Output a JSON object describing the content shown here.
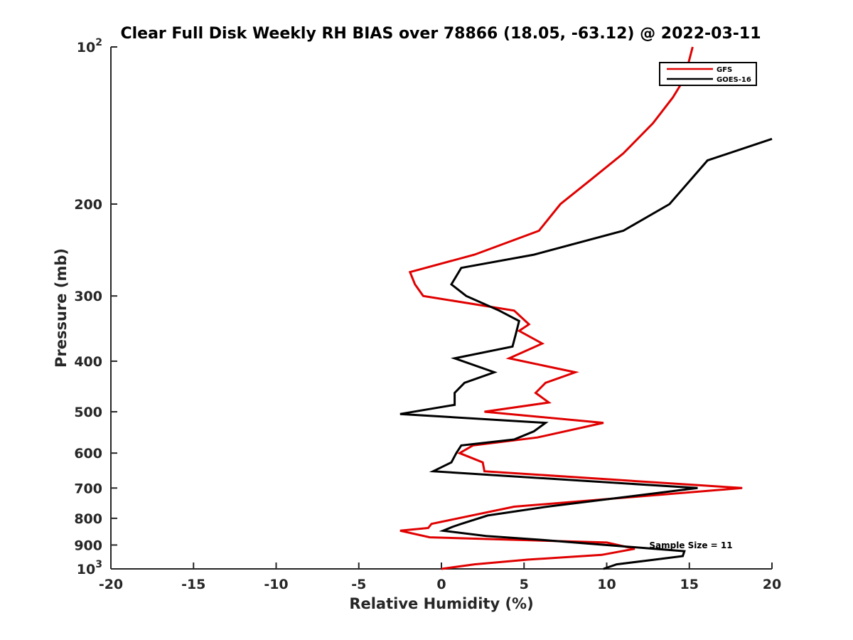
{
  "chart_data": {
    "type": "line",
    "title": "Clear Full Disk Weekly RH BIAS over 78866 (18.05, -63.12) @ 2022-03-11",
    "xlabel": "Relative Humidity (%)",
    "ylabel": "Pressure (mb)",
    "xlim": [
      -20,
      20
    ],
    "ylim": [
      100,
      1000
    ],
    "y_scale": "log",
    "y_reversed": true,
    "grid": false,
    "legend_position": "top-right",
    "x_ticks": [
      -20,
      -15,
      -10,
      -5,
      0,
      5,
      10,
      15,
      20
    ],
    "x_tick_labels": [
      "-20",
      "-15",
      "-10",
      "-5",
      "0",
      "5",
      "10",
      "15",
      "20"
    ],
    "y_ticks": [
      100,
      200,
      300,
      400,
      500,
      600,
      700,
      800,
      900,
      1000
    ],
    "y_tick_labels": [
      {
        "base": "10",
        "exp": "2"
      },
      {
        "base": "200",
        "exp": ""
      },
      {
        "base": "300",
        "exp": ""
      },
      {
        "base": "400",
        "exp": ""
      },
      {
        "base": "500",
        "exp": ""
      },
      {
        "base": "600",
        "exp": ""
      },
      {
        "base": "700",
        "exp": ""
      },
      {
        "base": "800",
        "exp": ""
      },
      {
        "base": "900",
        "exp": ""
      },
      {
        "base": "10",
        "exp": "3"
      }
    ],
    "annotation": "Sample Size = 11",
    "series": [
      {
        "name": "GFS",
        "color": "#e00000",
        "points": [
          [
            15.2,
            100
          ],
          [
            14.7,
            115
          ],
          [
            14.0,
            125
          ],
          [
            12.8,
            140
          ],
          [
            11.0,
            160
          ],
          [
            9.0,
            180
          ],
          [
            7.2,
            200
          ],
          [
            5.9,
            225
          ],
          [
            2.0,
            250
          ],
          [
            -1.9,
            270
          ],
          [
            -1.6,
            285
          ],
          [
            -1.1,
            300
          ],
          [
            4.4,
            320
          ],
          [
            5.3,
            340
          ],
          [
            4.7,
            350
          ],
          [
            6.1,
            370
          ],
          [
            4.1,
            395
          ],
          [
            8.1,
            420
          ],
          [
            6.3,
            440
          ],
          [
            5.7,
            460
          ],
          [
            6.5,
            480
          ],
          [
            2.6,
            500
          ],
          [
            9.8,
            525
          ],
          [
            5.8,
            560
          ],
          [
            1.9,
            580
          ],
          [
            1.1,
            600
          ],
          [
            2.5,
            625
          ],
          [
            2.6,
            650
          ],
          [
            18.2,
            700
          ],
          [
            4.4,
            760
          ],
          [
            -0.6,
            820
          ],
          [
            -0.8,
            835
          ],
          [
            -2.5,
            845
          ],
          [
            -0.7,
            870
          ],
          [
            10.0,
            890
          ],
          [
            11.7,
            915
          ],
          [
            9.7,
            940
          ],
          [
            5.2,
            960
          ],
          [
            2.0,
            980
          ],
          [
            0.0,
            1000
          ]
        ]
      },
      {
        "name": "GOES-16",
        "color": "#000000",
        "points": [
          [
            20.0,
            150
          ],
          [
            16.1,
            165
          ],
          [
            13.8,
            200
          ],
          [
            11.0,
            225
          ],
          [
            5.6,
            250
          ],
          [
            1.2,
            265
          ],
          [
            0.6,
            285
          ],
          [
            1.5,
            300
          ],
          [
            3.5,
            320
          ],
          [
            4.7,
            335
          ],
          [
            4.5,
            355
          ],
          [
            4.3,
            375
          ],
          [
            0.8,
            395
          ],
          [
            3.2,
            420
          ],
          [
            1.4,
            440
          ],
          [
            0.8,
            460
          ],
          [
            0.8,
            485
          ],
          [
            -2.5,
            505
          ],
          [
            6.3,
            525
          ],
          [
            5.6,
            545
          ],
          [
            4.4,
            565
          ],
          [
            1.2,
            580
          ],
          [
            0.9,
            600
          ],
          [
            0.6,
            625
          ],
          [
            -0.5,
            650
          ],
          [
            15.5,
            700
          ],
          [
            6.4,
            760
          ],
          [
            2.8,
            790
          ],
          [
            1.2,
            820
          ],
          [
            0.7,
            830
          ],
          [
            0.1,
            845
          ],
          [
            2.7,
            865
          ],
          [
            6.1,
            880
          ],
          [
            14.7,
            925
          ],
          [
            14.6,
            945
          ],
          [
            12.9,
            960
          ],
          [
            10.6,
            980
          ],
          [
            9.8,
            1000
          ]
        ]
      }
    ]
  }
}
